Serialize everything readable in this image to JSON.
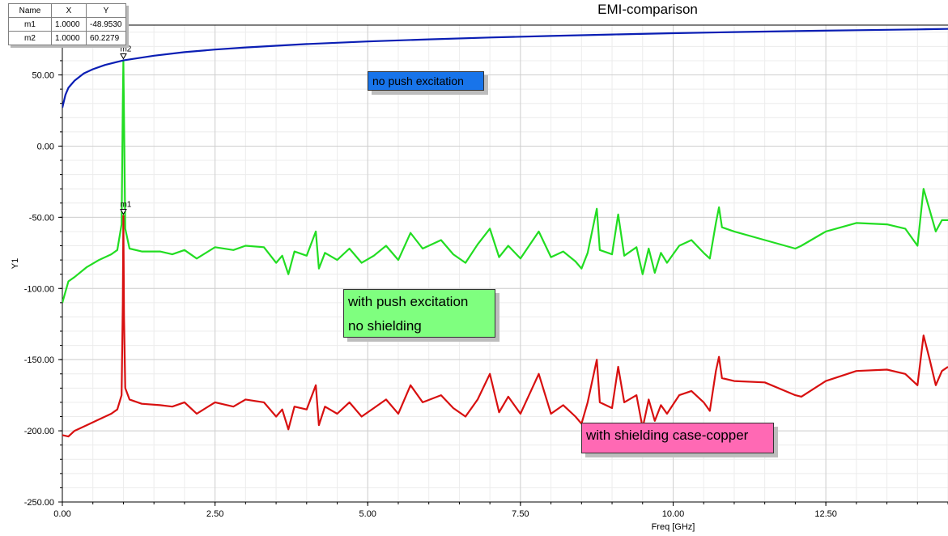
{
  "chart_data": {
    "type": "line",
    "title": "EMI-comparison",
    "xlabel": "Freq [GHz]",
    "ylabel": "Y1",
    "xlim": [
      0,
      14.5
    ],
    "ylim": [
      -250,
      85
    ],
    "x_ticks": [
      "0.00",
      "2.50",
      "5.00",
      "7.50",
      "10.00",
      "12.50"
    ],
    "y_ticks": [
      "50.00",
      "0.00",
      "-50.00",
      "-100.00",
      "-150.00",
      "-200.00",
      "-250.00"
    ],
    "grid": true,
    "colors": {
      "blue": "#0a1eb4",
      "green": "#22dd22",
      "red": "#d81010"
    },
    "series": [
      {
        "color_key": "blue",
        "x": [
          0,
          0.05,
          0.1,
          0.2,
          0.35,
          0.5,
          0.7,
          1.0,
          1.5,
          2.0,
          2.5,
          3.0,
          4.0,
          5.0,
          6.0,
          7.0,
          8.0,
          9.0,
          10.0,
          11.0,
          12.0,
          13.0,
          14.0,
          14.5
        ],
        "y": [
          27,
          36,
          41,
          46,
          51,
          54,
          57,
          60.2,
          63.5,
          66,
          67.8,
          69.3,
          71.7,
          73.5,
          75,
          76.3,
          77.4,
          78.4,
          79.3,
          80.1,
          80.8,
          81.4,
          82,
          82.3
        ]
      },
      {
        "color_key": "green",
        "x": [
          0,
          0.1,
          0.2,
          0.4,
          0.6,
          0.8,
          0.9,
          0.97,
          0.99,
          1.0,
          1.01,
          1.03,
          1.1,
          1.3,
          1.6,
          1.8,
          2.0,
          2.2,
          2.5,
          2.8,
          3.0,
          3.3,
          3.5,
          3.6,
          3.7,
          3.8,
          4.0,
          4.15,
          4.2,
          4.3,
          4.5,
          4.7,
          4.9,
          5.1,
          5.3,
          5.5,
          5.7,
          5.9,
          6.2,
          6.4,
          6.6,
          6.8,
          7.0,
          7.15,
          7.3,
          7.5,
          7.8,
          8.0,
          8.2,
          8.4,
          8.5,
          8.6,
          8.75,
          8.8,
          9.0,
          9.1,
          9.2,
          9.4,
          9.5,
          9.6,
          9.7,
          9.8,
          9.9,
          10.1,
          10.3,
          10.5,
          10.6,
          10.7,
          10.75,
          10.8,
          11.0,
          11.5,
          12.0,
          12.1,
          12.5,
          13.0,
          13.5,
          13.8,
          14.0,
          14.1,
          14.2,
          14.3,
          14.4,
          14.5
        ],
        "y": [
          -110,
          -95,
          -92,
          -85,
          -80,
          -76,
          -73,
          -55,
          30,
          60.2,
          20,
          -58,
          -72,
          -74,
          -74,
          -76,
          -73,
          -79,
          -71,
          -73,
          -70,
          -71,
          -82,
          -77,
          -90,
          -74,
          -77,
          -60,
          -86,
          -75,
          -80,
          -72,
          -82,
          -77,
          -70,
          -80,
          -61,
          -72,
          -66,
          -76,
          -82,
          -69,
          -58,
          -78,
          -70,
          -79,
          -60,
          -78,
          -74,
          -81,
          -86,
          -75,
          -44,
          -73,
          -76,
          -48,
          -77,
          -71,
          -90,
          -72,
          -89,
          -75,
          -82,
          -70,
          -66,
          -75,
          -79,
          -54,
          -43,
          -57,
          -60,
          -66,
          -72,
          -70,
          -60,
          -54,
          -55,
          -58,
          -70,
          -30,
          -45,
          -60,
          -52,
          -52
        ]
      },
      {
        "color_key": "red",
        "x": [
          0,
          0.1,
          0.2,
          0.4,
          0.6,
          0.8,
          0.9,
          0.97,
          0.99,
          1.0,
          1.01,
          1.03,
          1.1,
          1.3,
          1.6,
          1.8,
          2.0,
          2.2,
          2.5,
          2.8,
          3.0,
          3.3,
          3.5,
          3.6,
          3.7,
          3.8,
          4.0,
          4.15,
          4.2,
          4.3,
          4.5,
          4.7,
          4.9,
          5.1,
          5.3,
          5.5,
          5.7,
          5.9,
          6.2,
          6.4,
          6.6,
          6.8,
          7.0,
          7.15,
          7.3,
          7.5,
          7.8,
          8.0,
          8.2,
          8.4,
          8.5,
          8.6,
          8.75,
          8.8,
          9.0,
          9.1,
          9.2,
          9.4,
          9.5,
          9.6,
          9.7,
          9.8,
          9.9,
          10.1,
          10.3,
          10.5,
          10.6,
          10.7,
          10.75,
          10.8,
          11.0,
          11.5,
          12.0,
          12.1,
          12.5,
          13.0,
          13.5,
          13.8,
          14.0,
          14.1,
          14.2,
          14.3,
          14.4,
          14.5
        ],
        "y": [
          -203,
          -204,
          -200,
          -196,
          -192,
          -188,
          -185,
          -175,
          -110,
          -48.95,
          -120,
          -170,
          -178,
          -181,
          -182,
          -183,
          -180,
          -188,
          -180,
          -183,
          -178,
          -180,
          -190,
          -185,
          -199,
          -183,
          -185,
          -168,
          -196,
          -183,
          -188,
          -180,
          -190,
          -184,
          -178,
          -188,
          -168,
          -180,
          -175,
          -184,
          -190,
          -178,
          -160,
          -187,
          -176,
          -188,
          -160,
          -188,
          -182,
          -190,
          -195,
          -180,
          -150,
          -180,
          -184,
          -155,
          -180,
          -175,
          -198,
          -178,
          -193,
          -182,
          -188,
          -175,
          -172,
          -180,
          -186,
          -158,
          -148,
          -163,
          -165,
          -166,
          -175,
          -176,
          -165,
          -158,
          -157,
          -160,
          -168,
          -133,
          -150,
          -168,
          -158,
          -155
        ]
      }
    ],
    "markers": [
      {
        "name": "m1",
        "x": 1.0,
        "y": -48.953,
        "label": "m1"
      },
      {
        "name": "m2",
        "x": 1.0,
        "y": 60.2279,
        "label": "m2"
      }
    ],
    "marker_table": {
      "headers": [
        "Name",
        "X",
        "Y"
      ],
      "rows": [
        [
          "m1",
          "1.0000",
          "-48.9530"
        ],
        [
          "m2",
          "1.0000",
          "60.2279"
        ]
      ]
    },
    "annotations": {
      "blue": "no push excitation",
      "green_line1": "with push excitation",
      "green_line2": "no shielding",
      "pink": "with shielding case-copper"
    }
  }
}
